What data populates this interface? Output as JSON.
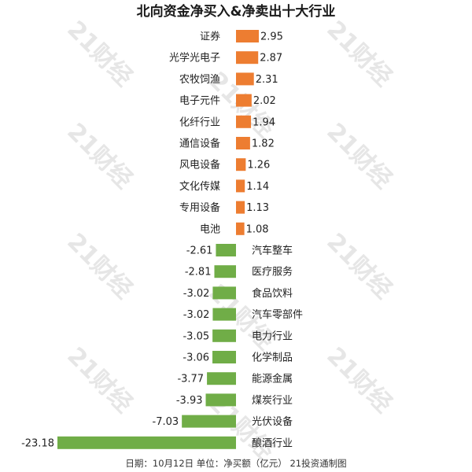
{
  "chart_data": {
    "type": "bar",
    "orientation": "horizontal",
    "title": "北向资金净买入&净卖出十大行业",
    "categories": [
      "证券",
      "光学光电子",
      "农牧饲渔",
      "电子元件",
      "化纤行业",
      "通信设备",
      "风电设备",
      "文化传媒",
      "专用设备",
      "电池",
      "汽车整车",
      "医疗服务",
      "食品饮料",
      "汽车零部件",
      "电力行业",
      "化学制品",
      "能源金属",
      "煤炭行业",
      "光伏设备",
      "酿酒行业"
    ],
    "values": [
      2.95,
      2.87,
      2.31,
      2.02,
      1.94,
      1.82,
      1.26,
      1.14,
      1.13,
      1.08,
      -2.61,
      -2.81,
      -3.02,
      -3.02,
      -3.05,
      -3.06,
      -3.77,
      -3.93,
      -7.03,
      -23.18
    ],
    "value_labels": [
      "2.95",
      "2.87",
      "2.31",
      "2.02",
      "1.94",
      "1.82",
      "1.26",
      "1.14",
      "1.13",
      "1.08",
      "-2.61",
      "-2.81",
      "-3.02",
      "-3.02",
      "-3.05",
      "-3.06",
      "-3.77",
      "-3.93",
      "-7.03",
      "-23.18"
    ],
    "xlim": [
      -23.18,
      2.95
    ],
    "grid": false,
    "legend": "none",
    "colors": {
      "positive": "#ed7d31",
      "negative": "#70ad47"
    }
  },
  "footer": "日期：10月12日 单位：净买额（亿元） 21投资通制图",
  "watermark": "21财经"
}
